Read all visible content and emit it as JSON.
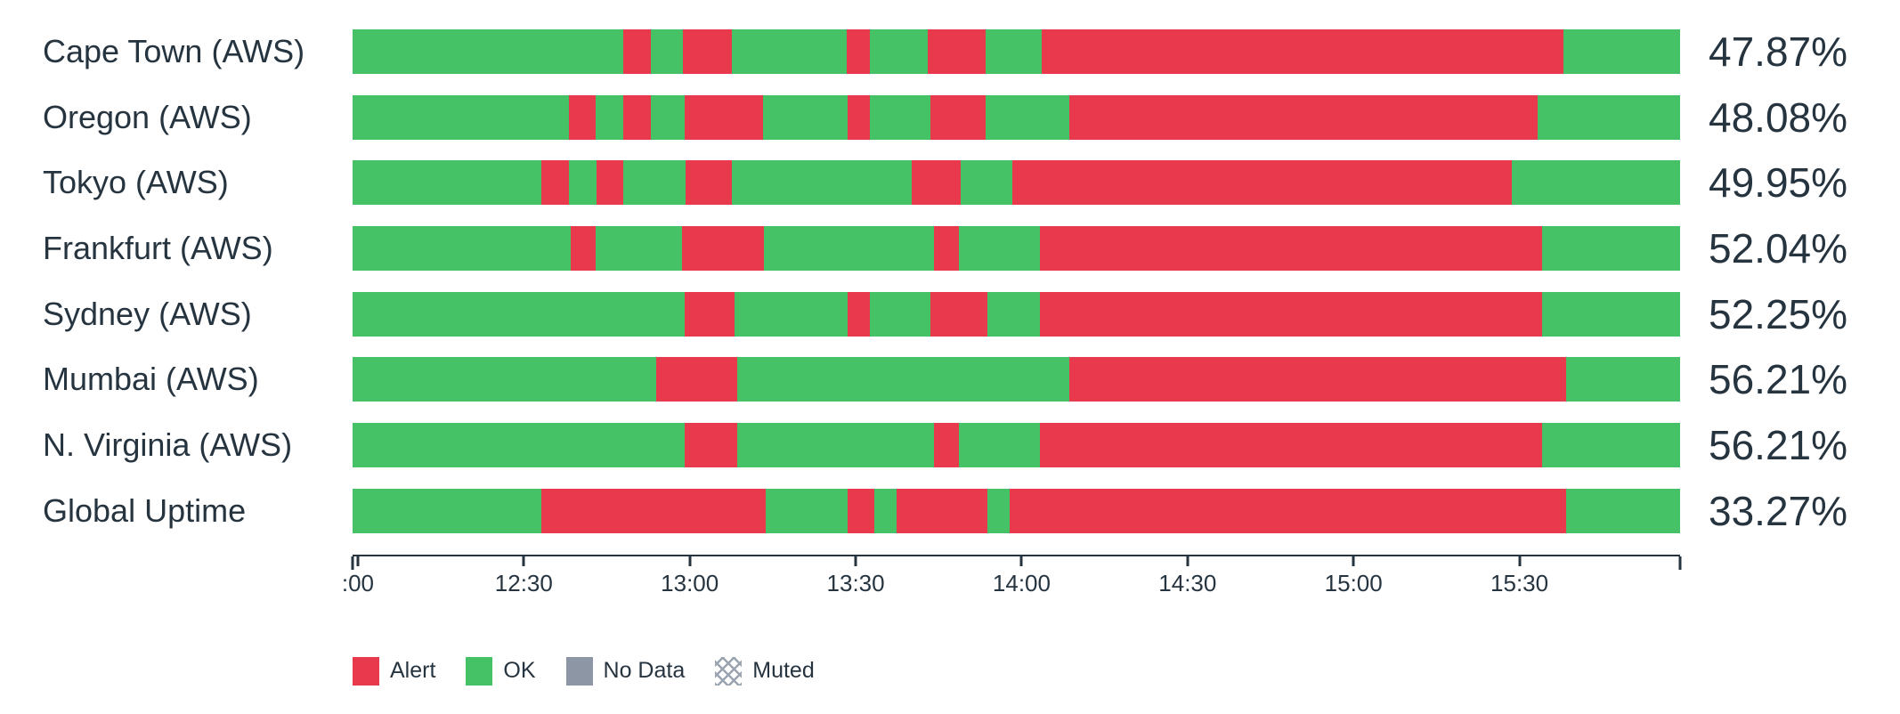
{
  "colors": {
    "alert": "#e8394d",
    "ok": "#45c266",
    "no_data": "#8d96a4",
    "muted_pattern": "#9aa3b0",
    "text": "#263440"
  },
  "legend": {
    "items": [
      {
        "id": "alert",
        "label": "Alert",
        "swatch": "solid"
      },
      {
        "id": "ok",
        "label": "OK",
        "swatch": "solid"
      },
      {
        "id": "no_data",
        "label": "No Data",
        "swatch": "solid"
      },
      {
        "id": "muted",
        "label": "Muted",
        "swatch": "crosshatch"
      }
    ]
  },
  "chart_data": {
    "type": "bar",
    "subtype": "status-timeline",
    "orientation": "horizontal",
    "grid": false,
    "legend_position": "bottom-left",
    "x_axis": {
      "tick_labels": [
        ":00",
        "12:30",
        "13:00",
        "13:30",
        "14:00",
        "14:30",
        "15:00",
        "15:30"
      ],
      "tick_positions_pct": [
        0.4,
        12.9,
        25.4,
        37.9,
        50.4,
        62.9,
        75.4,
        87.9
      ]
    },
    "statuses": [
      "alert",
      "ok",
      "no_data",
      "muted"
    ],
    "rows": [
      {
        "label": "Cape Town (AWS)",
        "uptime": "47.87%",
        "segments": [
          [
            "ok",
            20.4
          ],
          [
            "alert",
            2.1
          ],
          [
            "ok",
            2.4
          ],
          [
            "alert",
            3.7
          ],
          [
            "ok",
            8.6
          ],
          [
            "alert",
            1.8
          ],
          [
            "ok",
            4.3
          ],
          [
            "alert",
            4.4
          ],
          [
            "ok",
            4.2
          ],
          [
            "alert",
            39.3
          ],
          [
            "ok",
            8.8
          ]
        ]
      },
      {
        "label": "Oregon (AWS)",
        "uptime": "48.08%",
        "segments": [
          [
            "ok",
            16.3
          ],
          [
            "alert",
            2.0
          ],
          [
            "ok",
            2.1
          ],
          [
            "alert",
            2.1
          ],
          [
            "ok",
            2.5
          ],
          [
            "alert",
            5.9
          ],
          [
            "ok",
            6.4
          ],
          [
            "alert",
            1.7
          ],
          [
            "ok",
            4.5
          ],
          [
            "alert",
            4.2
          ],
          [
            "ok",
            6.3
          ],
          [
            "alert",
            35.3
          ],
          [
            "ok",
            10.7
          ]
        ]
      },
      {
        "label": "Tokyo (AWS)",
        "uptime": "49.95%",
        "segments": [
          [
            "ok",
            14.2
          ],
          [
            "alert",
            2.1
          ],
          [
            "ok",
            2.1
          ],
          [
            "alert",
            2.0
          ],
          [
            "ok",
            4.7
          ],
          [
            "alert",
            3.5
          ],
          [
            "ok",
            13.5
          ],
          [
            "alert",
            3.7
          ],
          [
            "ok",
            3.9
          ],
          [
            "alert",
            37.6
          ],
          [
            "ok",
            12.7
          ]
        ]
      },
      {
        "label": "Frankfurt (AWS)",
        "uptime": "52.04%",
        "segments": [
          [
            "ok",
            16.4
          ],
          [
            "alert",
            1.9
          ],
          [
            "ok",
            6.5
          ],
          [
            "alert",
            6.2
          ],
          [
            "ok",
            12.8
          ],
          [
            "alert",
            1.9
          ],
          [
            "ok",
            6.1
          ],
          [
            "alert",
            37.8
          ],
          [
            "ok",
            10.4
          ]
        ]
      },
      {
        "label": "Sydney (AWS)",
        "uptime": "52.25%",
        "segments": [
          [
            "ok",
            25.0
          ],
          [
            "alert",
            3.8
          ],
          [
            "ok",
            8.5
          ],
          [
            "alert",
            1.7
          ],
          [
            "ok",
            4.5
          ],
          [
            "alert",
            4.3
          ],
          [
            "ok",
            4.0
          ],
          [
            "alert",
            37.8
          ],
          [
            "ok",
            10.4
          ]
        ]
      },
      {
        "label": "Mumbai (AWS)",
        "uptime": "56.21%",
        "segments": [
          [
            "ok",
            22.9
          ],
          [
            "alert",
            6.1
          ],
          [
            "ok",
            25.0
          ],
          [
            "alert",
            37.4
          ],
          [
            "ok",
            8.6
          ]
        ]
      },
      {
        "label": "N. Virginia (AWS)",
        "uptime": "56.21%",
        "segments": [
          [
            "ok",
            25.0
          ],
          [
            "alert",
            4.0
          ],
          [
            "ok",
            14.8
          ],
          [
            "alert",
            1.9
          ],
          [
            "ok",
            6.1
          ],
          [
            "alert",
            37.8
          ],
          [
            "ok",
            10.4
          ]
        ]
      },
      {
        "label": "Global Uptime",
        "uptime": "33.27%",
        "segments": [
          [
            "ok",
            14.2
          ],
          [
            "alert",
            16.9
          ],
          [
            "ok",
            6.2
          ],
          [
            "alert",
            2.0
          ],
          [
            "ok",
            1.7
          ],
          [
            "alert",
            6.8
          ],
          [
            "ok",
            1.7
          ],
          [
            "alert",
            41.9
          ],
          [
            "ok",
            8.6
          ]
        ]
      }
    ]
  }
}
